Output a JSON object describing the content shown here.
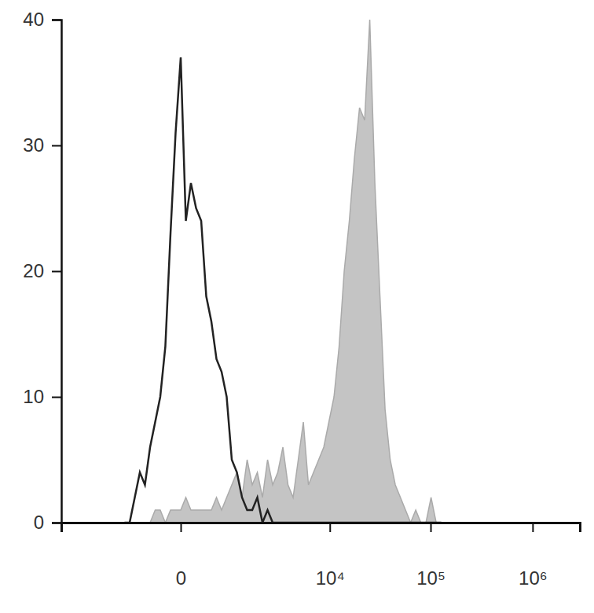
{
  "chart_data": {
    "type": "line",
    "x": [
      -917,
      -778,
      -654,
      -544,
      -446,
      -358,
      -280,
      -211,
      -149,
      -93,
      -44,
      0,
      44,
      93,
      149,
      211,
      280,
      358,
      446,
      544,
      654,
      778,
      917,
      1073,
      1248,
      1444,
      1664,
      1912,
      2188,
      2499,
      2849,
      3240,
      3679,
      4172,
      4727,
      5346,
      6041,
      6822,
      7700,
      8683,
      9785,
      11023,
      12413,
      13972,
      15721,
      17683,
      19883,
      22356,
      25124,
      28235,
      31727,
      35640,
      40032,
      44964,
      50508,
      56700,
      63648,
      71460,
      80244,
      90072,
      101088,
      113472,
      127368
    ],
    "series": [
      {
        "type": "area",
        "color": "#c4c4c4",
        "values": [
          0,
          0,
          0,
          0,
          0,
          0,
          1,
          1,
          0,
          1,
          1,
          1,
          2,
          1,
          1,
          1,
          1,
          1,
          2,
          1,
          2,
          3,
          4,
          2,
          5,
          3,
          4,
          2,
          5,
          3,
          4,
          6,
          3,
          2,
          5,
          8,
          3,
          4,
          5,
          6,
          8,
          10,
          14,
          20,
          24,
          29,
          33,
          32,
          40,
          27,
          18,
          9,
          5,
          3,
          2,
          1,
          0,
          1,
          0,
          0,
          2,
          0,
          0
        ]
      },
      {
        "type": "line",
        "color": "#222222",
        "values": [
          0,
          0,
          2,
          4,
          3,
          6,
          8,
          10,
          14,
          23,
          31,
          37,
          24,
          27,
          25,
          24,
          18,
          16,
          13,
          12,
          10,
          5,
          4,
          2,
          1,
          1,
          2,
          0,
          1,
          0,
          0,
          0,
          0,
          0,
          0,
          0,
          0,
          0,
          0,
          0,
          0,
          0,
          0,
          0,
          0,
          0,
          0,
          0,
          0,
          0,
          0,
          0,
          0,
          0,
          0,
          0,
          0,
          0,
          0,
          0,
          0,
          0,
          0
        ]
      }
    ],
    "xlim": [
      -4950,
      2900000
    ],
    "ylim": [
      0,
      40
    ],
    "xticks": [
      0,
      {
        "value": 10000,
        "label": "10⁴"
      },
      {
        "value": 100000,
        "label": "10⁵"
      },
      {
        "value": 1000000,
        "label": "10⁶"
      }
    ],
    "yticks": [
      0,
      10,
      20,
      30,
      40
    ],
    "log": "x"
  }
}
